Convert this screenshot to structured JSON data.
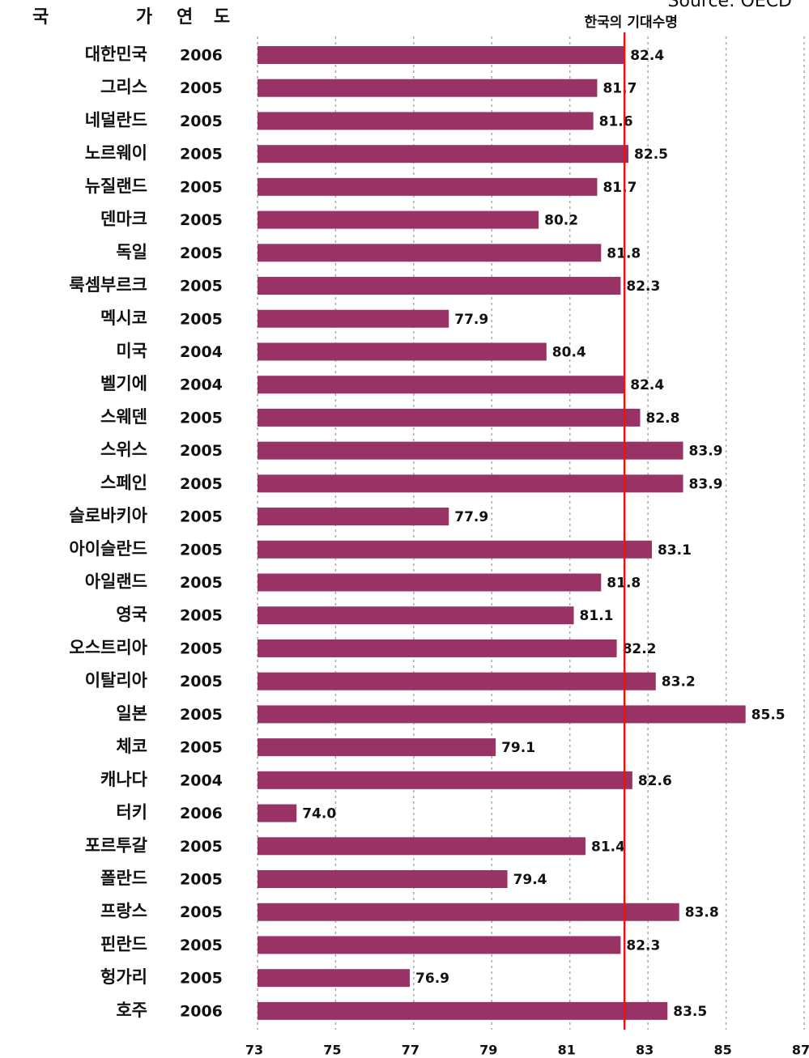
{
  "chart_data": {
    "type": "bar",
    "orientation": "horizontal",
    "source": "Source: OECD",
    "country_header": "국 가",
    "year_header": "연 도",
    "categories": [
      "대한민국",
      "그리스",
      "네덜란드",
      "노르웨이",
      "뉴질랜드",
      "덴마크",
      "독일",
      "룩셈부르크",
      "멕시코",
      "미국",
      "벨기에",
      "스웨덴",
      "스위스",
      "스페인",
      "슬로바키아",
      "아이슬란드",
      "아일랜드",
      "영국",
      "오스트리아",
      "이탈리아",
      "일본",
      "체코",
      "캐나다",
      "터키",
      "포르투갈",
      "폴란드",
      "프랑스",
      "핀란드",
      "헝가리",
      "호주"
    ],
    "years": [
      "2006",
      "2005",
      "2005",
      "2005",
      "2005",
      "2005",
      "2005",
      "2005",
      "2005",
      "2004",
      "2004",
      "2005",
      "2005",
      "2005",
      "2005",
      "2005",
      "2005",
      "2005",
      "2005",
      "2005",
      "2005",
      "2005",
      "2004",
      "2006",
      "2005",
      "2005",
      "2005",
      "2005",
      "2005",
      "2006"
    ],
    "values": [
      82.4,
      81.7,
      81.6,
      82.5,
      81.7,
      80.2,
      81.8,
      82.3,
      77.9,
      80.4,
      82.4,
      82.8,
      83.9,
      83.9,
      77.9,
      83.1,
      81.8,
      81.1,
      82.2,
      83.2,
      85.5,
      79.1,
      82.6,
      74.0,
      81.4,
      79.4,
      83.8,
      82.3,
      76.9,
      83.5
    ],
    "value_labels": [
      "82.4",
      "81.7",
      "81.6",
      "82.5",
      "81.7",
      "80.2",
      "81.8",
      "82.3",
      "77.9",
      "80.4",
      "82.4",
      "82.8",
      "83.9",
      "83.9",
      "77.9",
      "83.1",
      "81.8",
      "81.1",
      "82.2",
      "83.2",
      "85.5",
      "79.1",
      "82.6",
      "74.0",
      "81.4",
      "79.4",
      "83.8",
      "82.3",
      "76.9",
      "83.5"
    ],
    "color": "#993366",
    "xlim": [
      73,
      87
    ],
    "xticks": [
      73,
      75,
      77,
      79,
      81,
      83,
      85,
      87
    ],
    "grid": true,
    "reference_line": {
      "value": 82.4,
      "label": "한국의 기대수명",
      "color": "#ee1111",
      "label_color": "#3333aa"
    }
  }
}
